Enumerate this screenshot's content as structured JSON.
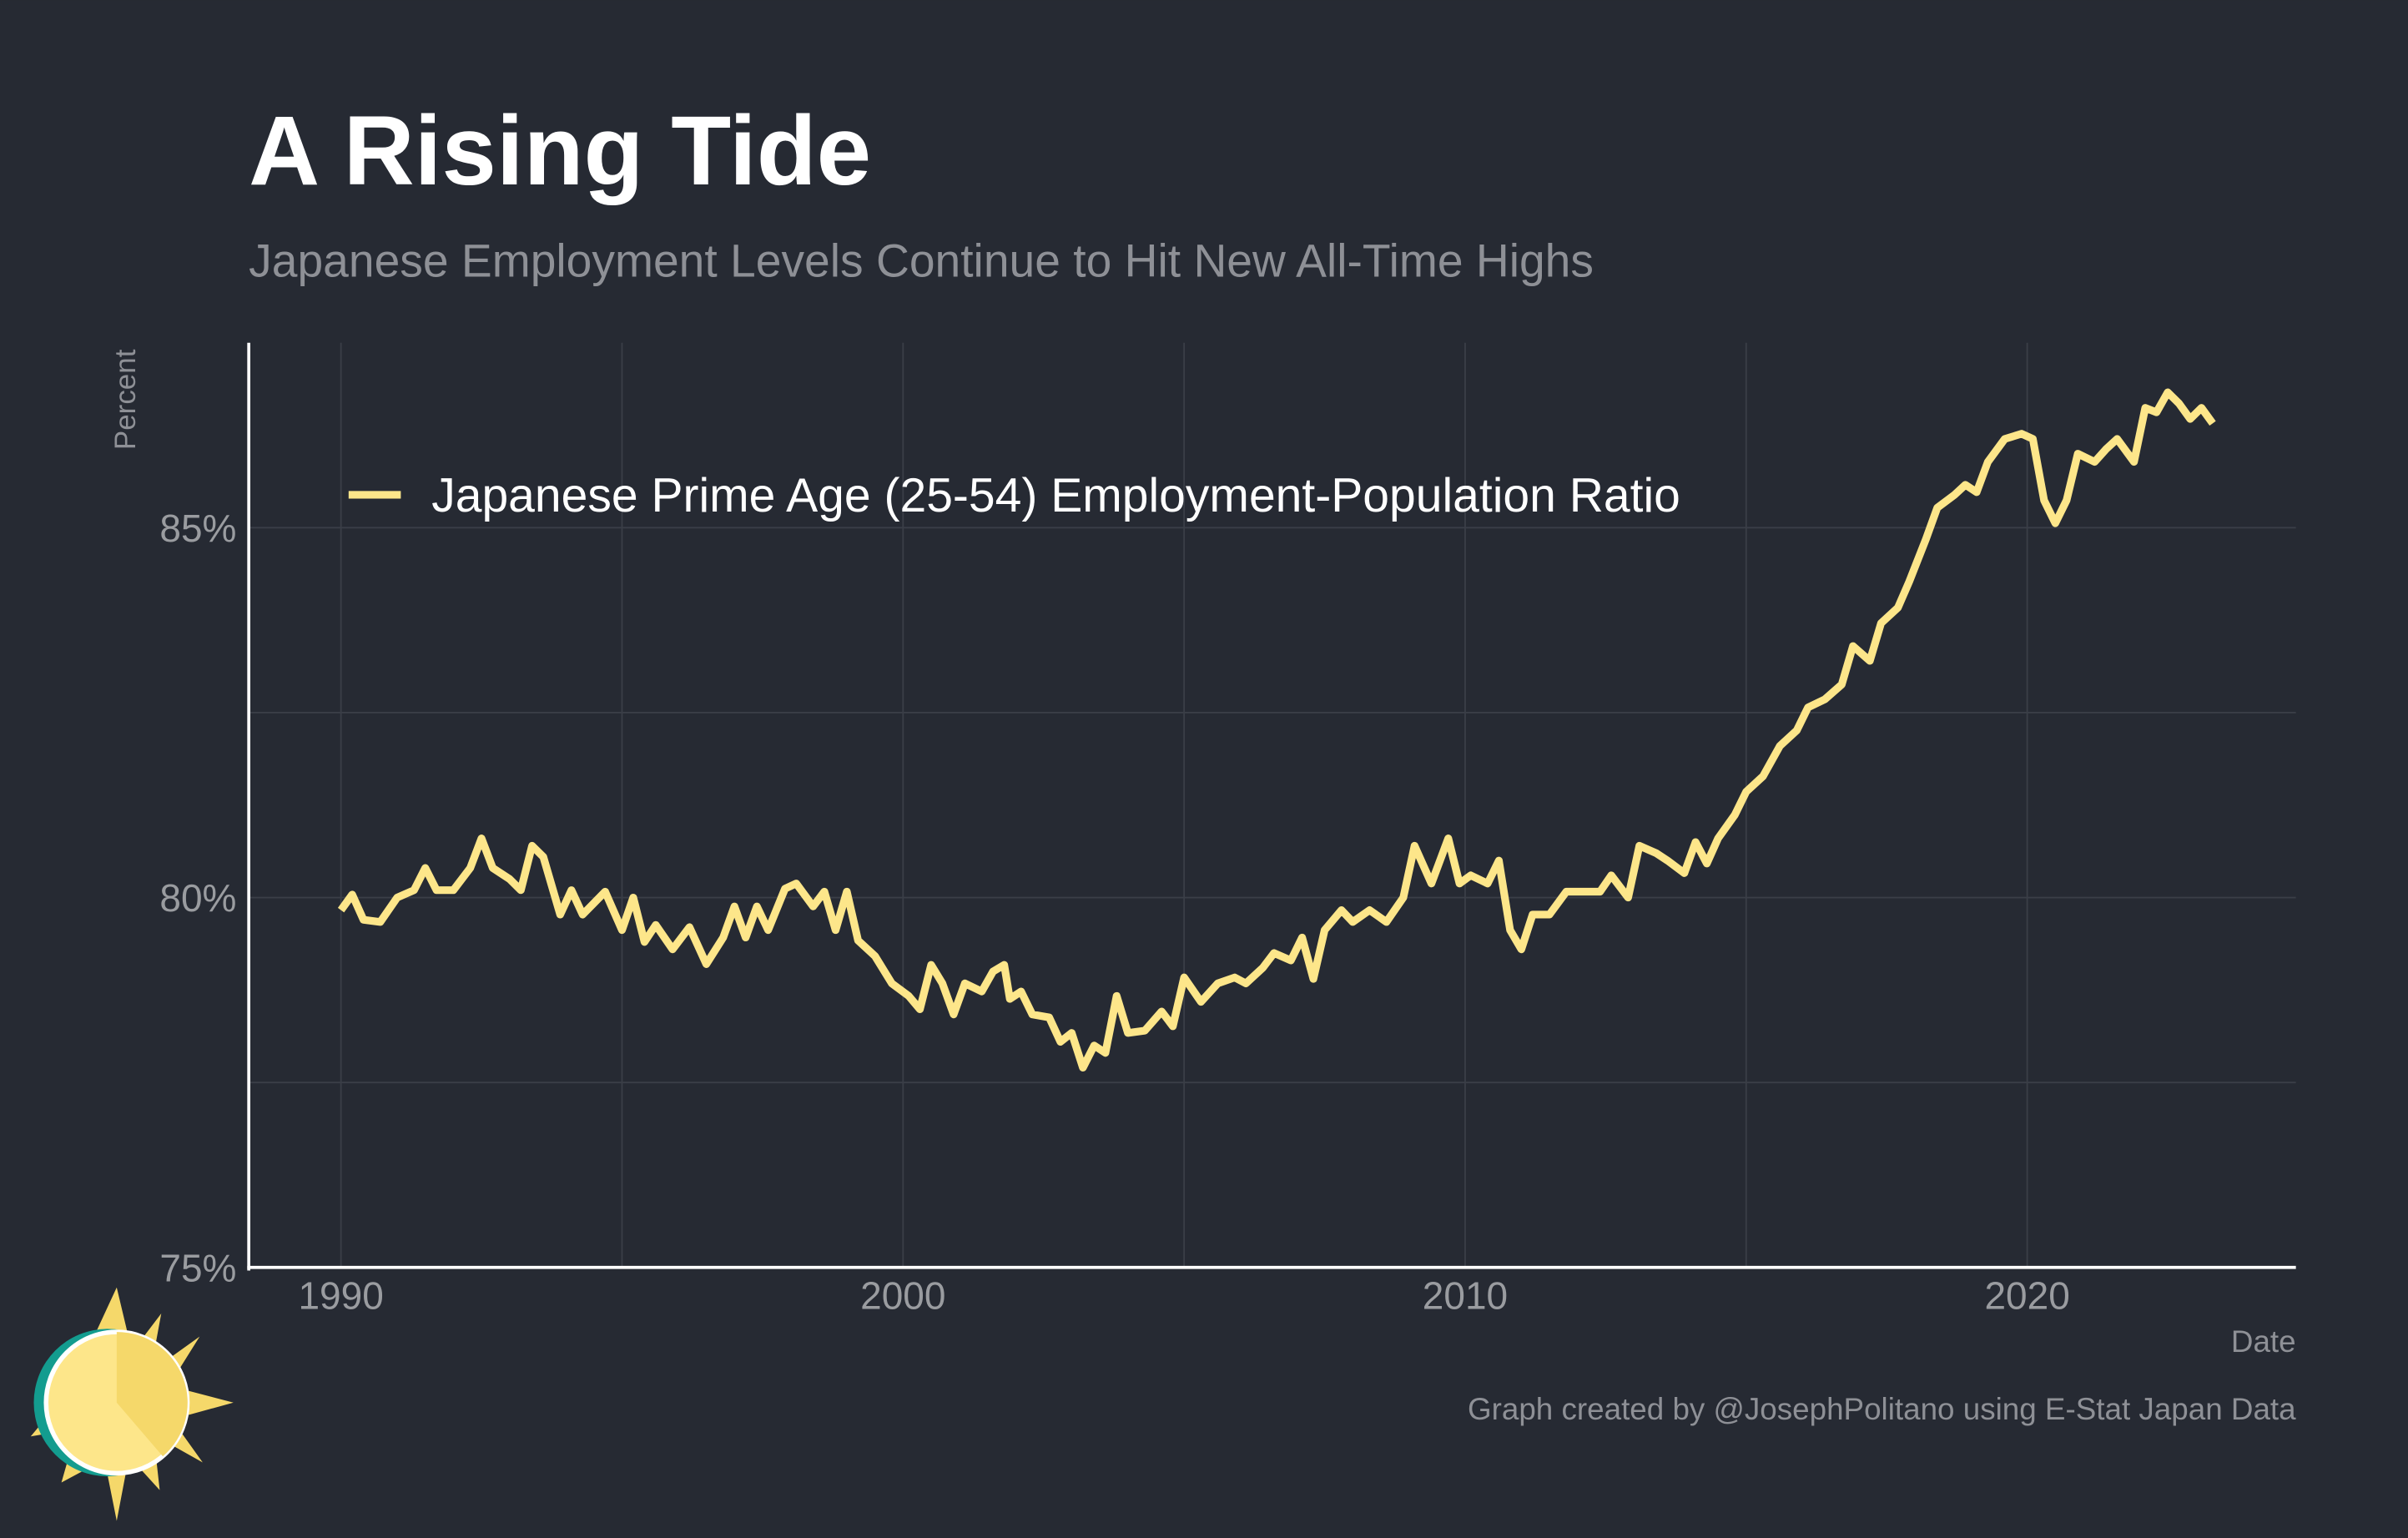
{
  "chart_data": {
    "type": "line",
    "title": "A Rising Tide",
    "subtitle": "Japanese Employment Levels Continue to Hit New All-Time Highs",
    "y_label": "Percent",
    "x_label": "Date",
    "caption": "Graph created by @JosephPolitano using E-Stat Japan Data",
    "x": [
      1990.0,
      1990.2,
      1990.4,
      1990.7,
      1991.0,
      1991.3,
      1991.5,
      1991.7,
      1992.0,
      1992.3,
      1992.5,
      1992.7,
      1993.0,
      1993.2,
      1993.4,
      1993.6,
      1993.9,
      1994.1,
      1994.3,
      1994.7,
      1995.0,
      1995.2,
      1995.4,
      1995.6,
      1995.9,
      1996.2,
      1996.5,
      1996.8,
      1997.0,
      1997.2,
      1997.4,
      1997.6,
      1997.9,
      1998.1,
      1998.4,
      1998.6,
      1998.8,
      1999.0,
      1999.2,
      1999.5,
      1999.8,
      2000.1,
      2000.3,
      2000.5,
      2000.7,
      2000.9,
      2001.1,
      2001.4,
      2001.6,
      2001.8,
      2001.9,
      2002.1,
      2002.3,
      2002.6,
      2002.8,
      2003.0,
      2003.2,
      2003.4,
      2003.6,
      2003.8,
      2004.0,
      2004.3,
      2004.6,
      2004.8,
      2005.0,
      2005.3,
      2005.6,
      2005.9,
      2006.1,
      2006.4,
      2006.6,
      2006.9,
      2007.1,
      2007.3,
      2007.5,
      2007.8,
      2008.0,
      2008.3,
      2008.6,
      2008.9,
      2009.1,
      2009.4,
      2009.7,
      2009.9,
      2010.1,
      2010.4,
      2010.6,
      2010.8,
      2011.0,
      2011.2,
      2011.5,
      2011.8,
      2012.1,
      2012.4,
      2012.6,
      2012.9,
      2013.1,
      2013.4,
      2013.6,
      2013.9,
      2014.1,
      2014.3,
      2014.5,
      2014.8,
      2015.0,
      2015.3,
      2015.6,
      2015.9,
      2016.1,
      2016.4,
      2016.7,
      2016.9,
      2017.2,
      2017.4,
      2017.7,
      2017.9,
      2018.2,
      2018.4,
      2018.7,
      2018.9,
      2019.1,
      2019.3,
      2019.6,
      2019.9,
      2020.1,
      2020.3,
      2020.5,
      2020.7,
      2020.9,
      2021.2,
      2021.4,
      2021.6,
      2021.9,
      2022.1,
      2022.3,
      2022.5,
      2022.7,
      2022.9,
      2023.1,
      2023.3
    ],
    "series": [
      {
        "name": "Japanese Prime Age (25-54) Employment-Population Ratio",
        "color": "#fde68a",
        "values": [
          79.83,
          80.04,
          79.7,
          79.67,
          80.0,
          80.1,
          80.4,
          80.1,
          80.1,
          80.4,
          80.8,
          80.4,
          80.25,
          80.1,
          80.7,
          80.55,
          79.77,
          80.1,
          79.77,
          80.08,
          79.56,
          80.0,
          79.4,
          79.63,
          79.3,
          79.6,
          79.1,
          79.46,
          79.88,
          79.46,
          79.88,
          79.56,
          80.12,
          80.19,
          79.88,
          80.08,
          79.56,
          80.08,
          79.42,
          79.21,
          78.84,
          78.67,
          78.49,
          79.09,
          78.84,
          78.42,
          78.84,
          78.73,
          79.0,
          79.09,
          78.63,
          78.73,
          78.42,
          78.38,
          78.05,
          78.17,
          77.7,
          78.0,
          77.9,
          78.67,
          78.17,
          78.2,
          78.46,
          78.26,
          78.92,
          78.59,
          78.84,
          78.92,
          78.84,
          79.05,
          79.25,
          79.15,
          79.46,
          78.9,
          79.56,
          79.83,
          79.67,
          79.83,
          79.67,
          80.0,
          80.7,
          80.19,
          80.8,
          80.19,
          80.3,
          80.19,
          80.5,
          79.56,
          79.3,
          79.77,
          79.77,
          80.08,
          80.08,
          80.08,
          80.3,
          80.0,
          80.7,
          80.6,
          80.5,
          80.33,
          80.75,
          80.46,
          80.8,
          81.12,
          81.43,
          81.64,
          82.05,
          82.26,
          82.57,
          82.68,
          82.88,
          83.4,
          83.2,
          83.71,
          83.92,
          84.27,
          84.85,
          85.27,
          85.44,
          85.58,
          85.48,
          85.89,
          86.2,
          86.27,
          86.2,
          85.37,
          85.06,
          85.37,
          86.0,
          85.89,
          86.06,
          86.2,
          85.89,
          86.62,
          86.56,
          86.83,
          86.68,
          86.47,
          86.62,
          86.41
        ]
      }
    ],
    "xlim": [
      1988.36,
      2024.78
    ],
    "xticks": [
      1990,
      2000,
      2010,
      2020
    ],
    "minor_xticks": [
      1995,
      2005,
      2015
    ],
    "ylim": [
      75,
      87.5
    ],
    "yticks": [
      {
        "value": 75,
        "label": "75%"
      },
      {
        "value": 80,
        "label": "80%"
      },
      {
        "value": 85,
        "label": "85%"
      }
    ],
    "minor_yticks": [
      77.5,
      82.5
    ],
    "grid": true,
    "legend": "top-left"
  }
}
